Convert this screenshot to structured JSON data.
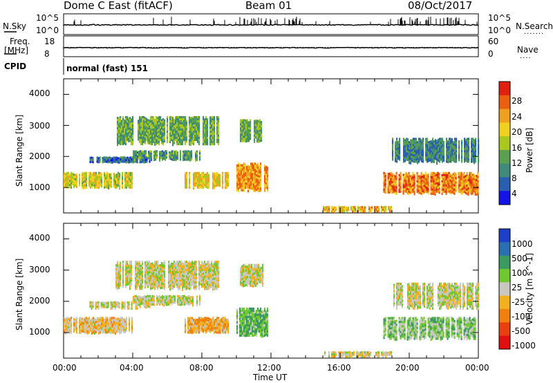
{
  "header": {
    "station": "Dome C East (fitACF)",
    "beam": "Beam 01",
    "date": "08/Oct/2017"
  },
  "status_panels": {
    "nsky_label": "N.Sky",
    "nsearch_label": "N.Search",
    "nsky_ticks": [
      "10^5",
      "10^0"
    ],
    "nsearch_ticks": [
      "10^5",
      "10^0"
    ],
    "freq_label": "Freq.",
    "freq_unit": "[MHz]",
    "freq_ticks": [
      "18",
      "8"
    ],
    "nave_label": "Nave",
    "nave_ticks": [
      "60",
      "0"
    ],
    "cpid_label": "CPID",
    "cpid_value": "normal (fast) 151"
  },
  "axes": {
    "ylabel": "Slant Range [km]",
    "xlabel": "Time UT",
    "yticks": [
      "4000",
      "3000",
      "2000",
      "1000"
    ],
    "xticks": [
      "00:00",
      "04:00",
      "08:00",
      "12:00",
      "16:00",
      "20:00",
      "00:00"
    ]
  },
  "power_scale": {
    "label": "Power [dB]",
    "ticks": [
      "28",
      "24",
      "20",
      "16",
      "12",
      "8",
      "4"
    ],
    "colors": [
      "#1414e6",
      "#2a5fb0",
      "#3f8a78",
      "#5aa050",
      "#a8c820",
      "#f0d020",
      "#f0a020",
      "#e86010",
      "#e02010"
    ]
  },
  "velocity_scale": {
    "label": "Velocity [m s^-1]",
    "ticks": [
      "1000",
      "500",
      "100",
      "25",
      "-25",
      "-100",
      "-500",
      "-1000"
    ],
    "colors": [
      "#1e40c8",
      "#2a70b0",
      "#3a9a60",
      "#70c830",
      "#c8c8c0",
      "#f0b020",
      "#f08010",
      "#e84010",
      "#e01010"
    ]
  },
  "chart_data": [
    {
      "type": "heatmap",
      "title": "Power",
      "xlabel": "Time UT",
      "ylabel": "Slant Range [km]",
      "xlim": [
        "00:00",
        "24:00"
      ],
      "ylim": [
        180,
        4500
      ],
      "colorbar_label": "Power [dB]",
      "colorbar_range": [
        0,
        32
      ],
      "regions": [
        {
          "t": [
            0.0,
            4.0
          ],
          "range": [
            1000,
            1500
          ],
          "value": 18
        },
        {
          "t": [
            1.5,
            5.0
          ],
          "range": [
            1800,
            2000
          ],
          "value": 6
        },
        {
          "t": [
            4.0,
            8.0
          ],
          "range": [
            1900,
            2200
          ],
          "value": 10
        },
        {
          "t": [
            3.0,
            9.0
          ],
          "range": [
            2400,
            3300
          ],
          "value": 12
        },
        {
          "t": [
            7.0,
            9.5
          ],
          "range": [
            1000,
            1500
          ],
          "value": 20
        },
        {
          "t": [
            10.0,
            11.8
          ],
          "range": [
            900,
            1800
          ],
          "value": 24
        },
        {
          "t": [
            10.2,
            11.5
          ],
          "range": [
            2500,
            3200
          ],
          "value": 12
        },
        {
          "t": [
            15.0,
            19.0
          ],
          "range": [
            250,
            400
          ],
          "value": 22
        },
        {
          "t": [
            18.5,
            24.0
          ],
          "range": [
            800,
            1500
          ],
          "value": 26
        },
        {
          "t": [
            19.0,
            24.0
          ],
          "range": [
            1800,
            2600
          ],
          "value": 8
        }
      ]
    },
    {
      "type": "heatmap",
      "title": "Velocity",
      "xlabel": "Time UT",
      "ylabel": "Slant Range [km]",
      "xlim": [
        "00:00",
        "24:00"
      ],
      "ylim": [
        180,
        4500
      ],
      "colorbar_label": "Velocity [m s^-1]",
      "colorbar_range": [
        -1000,
        1000
      ],
      "regions": [
        {
          "t": [
            0.0,
            4.0
          ],
          "range": [
            1000,
            1500
          ],
          "value": -150
        },
        {
          "t": [
            1.5,
            5.0
          ],
          "range": [
            1800,
            2000
          ],
          "value": 0
        },
        {
          "t": [
            4.0,
            8.0
          ],
          "range": [
            1900,
            2200
          ],
          "value": 0
        },
        {
          "t": [
            3.0,
            9.0
          ],
          "range": [
            2400,
            3300
          ],
          "value": 0
        },
        {
          "t": [
            7.0,
            9.5
          ],
          "range": [
            1000,
            1500
          ],
          "value": -300
        },
        {
          "t": [
            10.0,
            11.8
          ],
          "range": [
            900,
            1800
          ],
          "value": 300
        },
        {
          "t": [
            10.2,
            11.5
          ],
          "range": [
            2500,
            3200
          ],
          "value": 0
        },
        {
          "t": [
            15.0,
            19.0
          ],
          "range": [
            250,
            400
          ],
          "value": -100
        },
        {
          "t": [
            18.5,
            24.0
          ],
          "range": [
            800,
            1500
          ],
          "value": 200
        },
        {
          "t": [
            19.0,
            24.0
          ],
          "range": [
            1800,
            2600
          ],
          "value": 0
        }
      ]
    }
  ]
}
